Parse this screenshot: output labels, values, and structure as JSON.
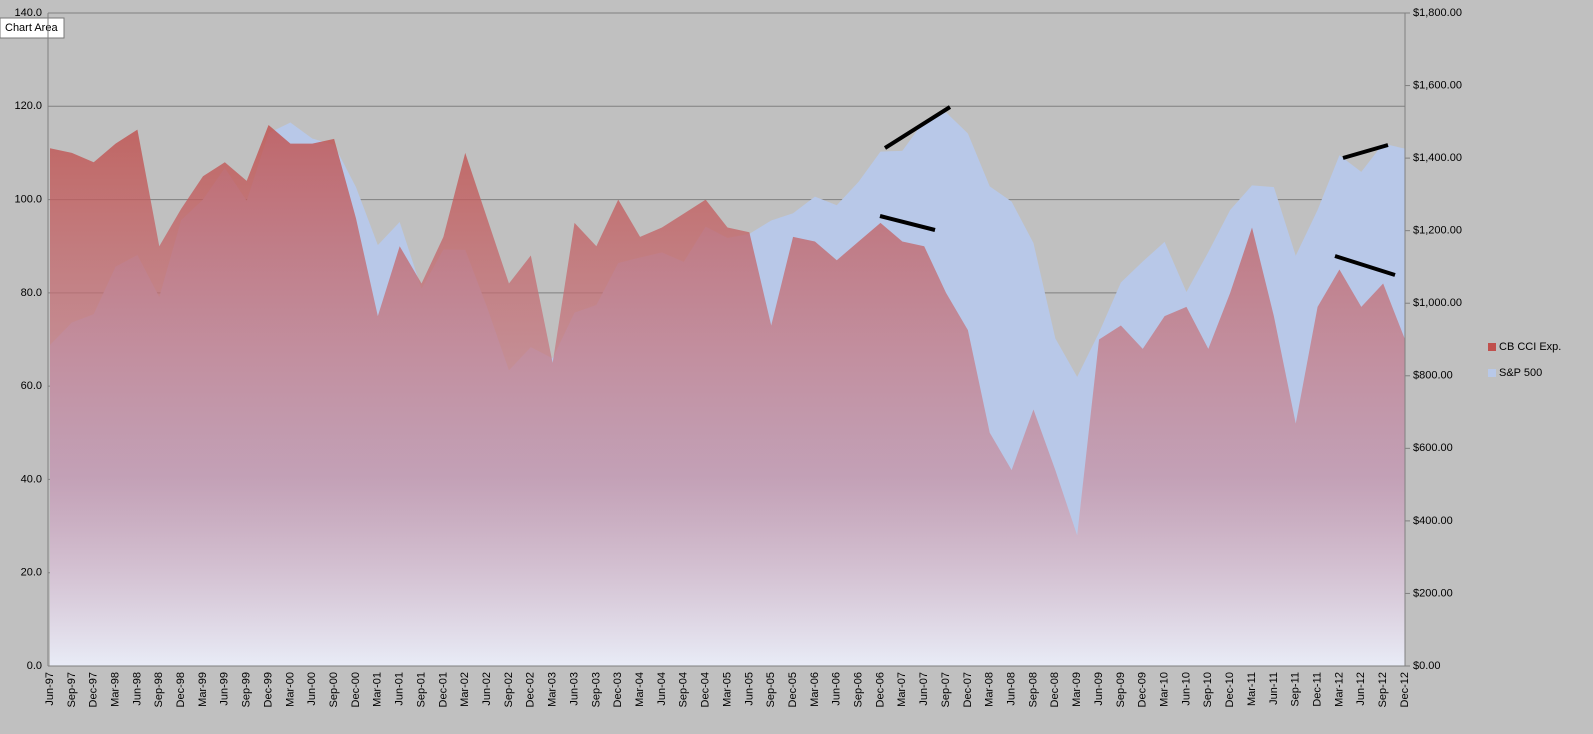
{
  "chart_data": {
    "type": "area",
    "tooltip": "Chart Area",
    "categories": [
      "Jun-97",
      "Sep-97",
      "Dec-97",
      "Mar-98",
      "Jun-98",
      "Sep-98",
      "Dec-98",
      "Mar-99",
      "Jun-99",
      "Sep-99",
      "Dec-99",
      "Mar-00",
      "Jun-00",
      "Sep-00",
      "Dec-00",
      "Mar-01",
      "Jun-01",
      "Sep-01",
      "Dec-01",
      "Mar-02",
      "Jun-02",
      "Sep-02",
      "Dec-02",
      "Mar-03",
      "Jun-03",
      "Sep-03",
      "Dec-03",
      "Mar-04",
      "Jun-04",
      "Sep-04",
      "Dec-04",
      "Mar-05",
      "Jun-05",
      "Sep-05",
      "Dec-05",
      "Mar-06",
      "Jun-06",
      "Sep-06",
      "Dec-06",
      "Mar-07",
      "Jun-07",
      "Sep-07",
      "Dec-07",
      "Mar-08",
      "Jun-08",
      "Sep-08",
      "Dec-08",
      "Mar-09",
      "Jun-09",
      "Sep-09",
      "Dec-09",
      "Mar-10",
      "Jun-10",
      "Sep-10",
      "Dec-10",
      "Mar-11",
      "Jun-11",
      "Sep-11",
      "Dec-11",
      "Mar-12",
      "Jun-12",
      "Sep-12",
      "Dec-12"
    ],
    "series": [
      {
        "name": "CB CCI Exp.",
        "color": "#c0504d",
        "values": [
          111,
          110,
          108,
          112,
          115,
          90,
          98,
          105,
          108,
          104,
          116,
          112,
          112,
          113,
          96,
          75,
          90,
          82,
          92,
          110,
          96,
          82,
          88,
          65,
          95,
          90,
          100,
          92,
          94,
          97,
          100,
          94,
          93,
          73,
          92,
          91,
          87,
          91,
          95,
          91,
          90,
          80,
          72,
          50,
          42,
          55,
          42,
          28,
          70,
          73,
          68,
          75,
          77,
          68,
          80,
          94,
          75,
          52,
          77,
          85,
          77,
          82,
          70
        ]
      },
      {
        "name": "S&P 500",
        "color": "#b8c8e8",
        "axis": "y2",
        "values": [
          885,
          947,
          970,
          1101,
          1133,
          1017,
          1229,
          1286,
          1373,
          1282,
          1469,
          1498,
          1454,
          1436,
          1320,
          1160,
          1224,
          1040,
          1148,
          1147,
          989,
          815,
          879,
          848,
          974,
          995,
          1111,
          1126,
          1140,
          1114,
          1211,
          1180,
          1191,
          1228,
          1248,
          1294,
          1270,
          1335,
          1418,
          1420,
          1503,
          1526,
          1468,
          1322,
          1280,
          1166,
          903,
          797,
          919,
          1057,
          1115,
          1169,
          1031,
          1141,
          1257,
          1325,
          1320,
          1131,
          1257,
          1408,
          1362,
          1440,
          1426
        ]
      }
    ],
    "ylim": [
      0,
      140
    ],
    "yticks": [
      {
        "value": 0,
        "label": "0.0"
      },
      {
        "value": 20,
        "label": "20.0"
      },
      {
        "value": 40,
        "label": "40.0"
      },
      {
        "value": 60,
        "label": "60.0"
      },
      {
        "value": 80,
        "label": "80.0"
      },
      {
        "value": 100,
        "label": "100.0"
      },
      {
        "value": 120,
        "label": "120.0"
      },
      {
        "value": 140,
        "label": "140.0"
      }
    ],
    "y2lim": [
      0,
      1800
    ],
    "y2ticks": [
      {
        "value": 0,
        "label": "$0.00"
      },
      {
        "value": 200,
        "label": "$200.00"
      },
      {
        "value": 400,
        "label": "$400.00"
      },
      {
        "value": 600,
        "label": "$600.00"
      },
      {
        "value": 800,
        "label": "$800.00"
      },
      {
        "value": 1000,
        "label": "$1,000.00"
      },
      {
        "value": 1200,
        "label": "$1,200.00"
      },
      {
        "value": 1400,
        "label": "$1,400.00"
      },
      {
        "value": 1600,
        "label": "$1,600.00"
      },
      {
        "value": 1800,
        "label": "$1,800.00"
      }
    ],
    "grid": true,
    "legend": "right"
  }
}
